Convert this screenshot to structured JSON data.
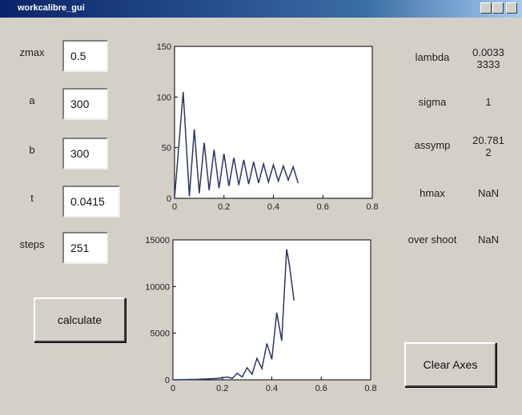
{
  "window": {
    "title": "workcalibre_gui"
  },
  "inputs": [
    {
      "label": "zmax",
      "value": "0.5"
    },
    {
      "label": "a",
      "value": "300"
    },
    {
      "label": "b",
      "value": "300"
    },
    {
      "label": "t",
      "value": "0.0415"
    },
    {
      "label": "steps",
      "value": "251"
    }
  ],
  "outputs": [
    {
      "label": "lambda",
      "value": [
        "0.0033",
        "3333"
      ]
    },
    {
      "label": "sigma",
      "value": [
        "1"
      ]
    },
    {
      "label": "assymp",
      "value": [
        "20.781",
        "2"
      ]
    },
    {
      "label": "hmax",
      "value": [
        "NaN"
      ]
    },
    {
      "label": "over shoot",
      "value": [
        "NaN"
      ]
    }
  ],
  "buttons": {
    "calculate": "calculate",
    "clear": "Clear Axes"
  },
  "chart_data": [
    {
      "type": "line",
      "color": "#2b3566",
      "x": [
        0,
        0.035,
        0.06,
        0.08,
        0.1,
        0.12,
        0.14,
        0.16,
        0.18,
        0.2,
        0.22,
        0.24,
        0.26,
        0.28,
        0.3,
        0.32,
        0.34,
        0.36,
        0.38,
        0.4,
        0.42,
        0.44,
        0.46,
        0.48,
        0.5
      ],
      "series": [
        {
          "values": [
            0,
            105,
            2,
            68,
            5,
            55,
            8,
            48,
            10,
            44,
            12,
            40,
            13,
            38,
            14,
            36,
            15,
            34,
            16,
            33,
            17,
            32,
            18,
            31,
            15
          ]
        }
      ],
      "xlim": [
        0,
        0.8
      ],
      "xticks": [
        0,
        0.2,
        0.4,
        0.6,
        0.8
      ],
      "ylim": [
        0,
        150
      ],
      "yticks": [
        0,
        50,
        100,
        150
      ]
    },
    {
      "type": "line",
      "color": "#2b3566",
      "x": [
        0,
        0.1,
        0.18,
        0.22,
        0.24,
        0.26,
        0.28,
        0.3,
        0.32,
        0.34,
        0.36,
        0.38,
        0.4,
        0.42,
        0.44,
        0.46,
        0.47,
        0.49
      ],
      "series": [
        {
          "values": [
            0,
            50,
            150,
            300,
            150,
            700,
            300,
            1300,
            600,
            2300,
            1200,
            3900,
            2200,
            7200,
            4200,
            14000,
            12500,
            8500
          ]
        }
      ],
      "xlim": [
        0,
        0.8
      ],
      "xticks": [
        0,
        0.2,
        0.4,
        0.6,
        0.8
      ],
      "ylim": [
        0,
        15000
      ],
      "yticks": [
        0,
        5000,
        10000,
        15000
      ]
    }
  ]
}
